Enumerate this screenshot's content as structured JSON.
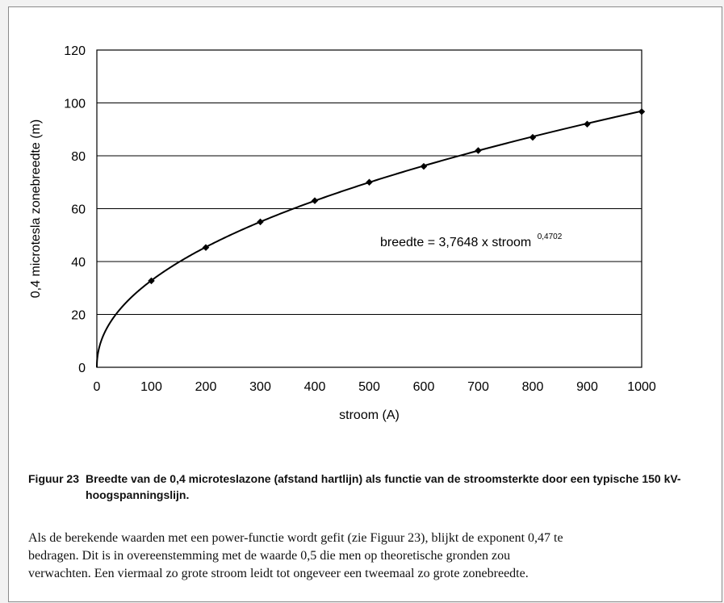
{
  "chart_data": {
    "type": "line",
    "xlabel": "stroom (A)",
    "ylabel": "0,4 microtesla zonebreedte (m)",
    "xlim": [
      0,
      1000
    ],
    "ylim": [
      0,
      120
    ],
    "xticks": [
      "0",
      "100",
      "200",
      "300",
      "400",
      "500",
      "600",
      "700",
      "800",
      "900",
      "1000"
    ],
    "yticks": [
      "0",
      "20",
      "40",
      "60",
      "80",
      "100",
      "120"
    ],
    "grid": "horizontal",
    "legend": "none",
    "series": [
      {
        "x": [
          100,
          200,
          300,
          400,
          500,
          600,
          700,
          800,
          900,
          1000
        ],
        "y": [
          32.7,
          45.3,
          55.0,
          63.0,
          70.0,
          76.0,
          82.0,
          87.0,
          92.0,
          96.7
        ]
      }
    ],
    "fit": {
      "coefficient": 3.7648,
      "exponent": 0.4702
    },
    "annotation": {
      "text": "breedte = 3,7648 x  stroom",
      "superscript": "0,4702"
    }
  },
  "caption": {
    "number": "Figuur 23",
    "text": "Breedte van de 0,4 microteslazone (afstand hartlijn) als functie van de stroomsterkte door een typische 150 kV-hoogspanningslijn."
  },
  "body": {
    "lines": [
      "Als de berekende waarden met een power-functie wordt gefit (zie Figuur 23), blijkt de exponent 0,47 te",
      "bedragen. Dit is in overeenstemming met de waarde 0,5 die men op theoretische gronden zou",
      "verwachten. Een viermaal zo grote stroom leidt tot ongeveer een tweemaal zo grote zonebreedte."
    ]
  }
}
